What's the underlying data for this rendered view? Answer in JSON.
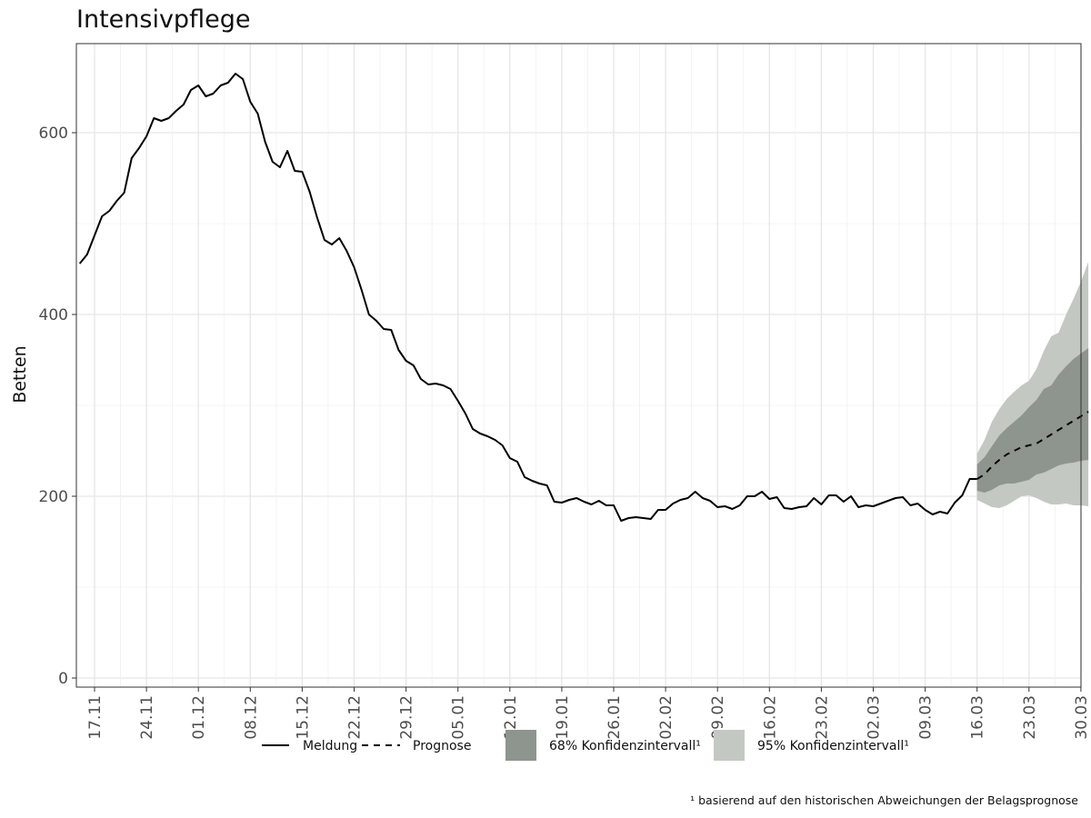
{
  "chart_data": {
    "type": "line",
    "title": "Intensivpflege",
    "ylabel": "Betten",
    "ylim": [
      0,
      700
    ],
    "yticks": [
      0,
      200,
      400,
      600
    ],
    "grid": true,
    "xticks": [
      "17.11",
      "24.11",
      "01.12",
      "08.12",
      "15.12",
      "22.12",
      "29.12",
      "05.01",
      "12.01",
      "19.01",
      "26.01",
      "02.02",
      "09.02",
      "16.02",
      "23.02",
      "02.03",
      "09.03",
      "16.03",
      "23.03",
      "30.03"
    ],
    "x_start": "15.11",
    "x_end": "30.03",
    "series": [
      {
        "name": "Meldung",
        "style": "solid",
        "start_index": 0,
        "values": [
          456,
          466,
          487,
          508,
          514,
          525,
          534,
          572,
          583,
          596,
          616,
          613,
          616,
          624,
          631,
          647,
          652,
          640,
          643,
          652,
          655,
          665,
          659,
          634,
          621,
          590,
          568,
          562,
          580,
          558,
          557,
          535,
          507,
          482,
          477,
          484,
          470,
          452,
          427,
          400,
          393,
          384,
          383,
          361,
          349,
          344,
          329,
          323,
          324,
          322,
          318,
          305,
          291,
          274,
          269,
          266,
          262,
          256,
          242,
          238,
          221,
          217,
          214,
          212,
          194,
          193,
          196,
          198,
          194,
          191,
          195,
          190,
          190,
          173,
          176,
          177,
          176,
          175,
          185,
          185,
          192,
          196,
          198,
          205,
          198,
          195,
          188,
          189,
          186,
          190,
          200,
          200,
          205,
          197,
          199,
          187,
          186,
          188,
          189,
          198,
          191,
          201,
          201,
          194,
          200,
          188,
          190,
          189,
          192,
          195,
          198,
          199,
          190,
          192,
          185,
          180,
          183,
          181,
          193,
          201,
          219,
          219
        ]
      },
      {
        "name": "Prognose",
        "style": "dashed",
        "start_index": 121,
        "values": [
          219,
          224,
          233,
          240,
          246,
          250,
          254,
          256,
          258,
          263,
          268,
          273,
          278,
          283,
          288,
          293
        ]
      }
    ],
    "bands": [
      {
        "name": "95% Konfidenzintervall¹",
        "color": "#c3c8c2",
        "start_index": 121,
        "lower": [
          196,
          192,
          188,
          187,
          190,
          195,
          200,
          201,
          198,
          194,
          191,
          191,
          192,
          190,
          190,
          189
        ],
        "upper": [
          247,
          262,
          282,
          296,
          307,
          315,
          322,
          327,
          340,
          360,
          376,
          380,
          400,
          417,
          436,
          458
        ]
      },
      {
        "name": "68% Konfidenzintervall¹",
        "color": "#8e958f",
        "start_index": 121,
        "lower": [
          206,
          204,
          207,
          212,
          214,
          214,
          216,
          218,
          224,
          226,
          230,
          234,
          236,
          237,
          239,
          240
        ],
        "upper": [
          235,
          243,
          255,
          267,
          275,
          282,
          289,
          298,
          306,
          318,
          322,
          334,
          343,
          351,
          357,
          363
        ]
      }
    ],
    "legend_position": "bottom",
    "legend": [
      {
        "label": "Meldung",
        "kind": "solid"
      },
      {
        "label": "Prognose",
        "kind": "dashed"
      },
      {
        "label": "68% Konfidenzintervall¹",
        "kind": "fill",
        "color": "#8e958f"
      },
      {
        "label": "95% Konfidenzintervall¹",
        "kind": "fill",
        "color": "#c3c8c2"
      }
    ],
    "footnote": "¹ basierend auf den historischen Abweichungen der Belagsprognose"
  }
}
